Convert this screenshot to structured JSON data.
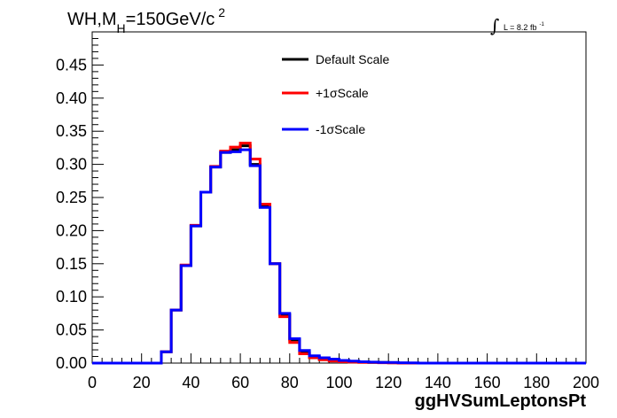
{
  "chart_data": {
    "type": "line",
    "title": {
      "prefix": "WH,M",
      "subscript": "H",
      "suffix": "=150GeV/c",
      "superscript": "2"
    },
    "lumi": {
      "integral_symbol": "∫",
      "text": "L = 8.2 fb",
      "superscript": "-1"
    },
    "xlabel": "ggHVSumLeptonsPt",
    "ylabel": "",
    "xlim": [
      0,
      200
    ],
    "ylim": [
      0,
      0.5
    ],
    "x_ticks": [
      "0",
      "20",
      "40",
      "60",
      "80",
      "100",
      "120",
      "140",
      "160",
      "180",
      "200"
    ],
    "y_ticks": [
      "0.00",
      "0.05",
      "0.10",
      "0.15",
      "0.20",
      "0.25",
      "0.30",
      "0.35",
      "0.40",
      "0.45"
    ],
    "legend_position": "top-center",
    "bin_edges": [
      0,
      4,
      8,
      12,
      16,
      20,
      24,
      28,
      32,
      36,
      40,
      44,
      48,
      52,
      56,
      60,
      64,
      68,
      72,
      76,
      80,
      84,
      88,
      92,
      96,
      100,
      104,
      108,
      112,
      116,
      120,
      124,
      128,
      132,
      136,
      140,
      144,
      148,
      152,
      156,
      160,
      164,
      168,
      172,
      176,
      180,
      184,
      188,
      192,
      196,
      200
    ],
    "series": [
      {
        "name": "Default Scale",
        "color": "#000000",
        "values": [
          0,
          0,
          0,
          0,
          0,
          0,
          0,
          0.017,
          0.08,
          0.147,
          0.207,
          0.258,
          0.296,
          0.318,
          0.322,
          0.328,
          0.3,
          0.237,
          0.15,
          0.073,
          0.035,
          0.016,
          0.009,
          0.006,
          0.004,
          0.003,
          0.002,
          0.0015,
          0.001,
          0.001,
          0.0005,
          0,
          0,
          0,
          0,
          0,
          0,
          0,
          0,
          0,
          0,
          0,
          0,
          0,
          0,
          0,
          0,
          0,
          0,
          0
        ]
      },
      {
        "name": "+1σScale",
        "color": "#ff0000",
        "values": [
          0,
          0,
          0,
          0,
          0,
          0,
          0,
          0.017,
          0.08,
          0.148,
          0.208,
          0.258,
          0.297,
          0.32,
          0.326,
          0.332,
          0.308,
          0.24,
          0.15,
          0.07,
          0.031,
          0.014,
          0.008,
          0.005,
          0.003,
          0.002,
          0.0015,
          0.001,
          0.001,
          0.0005,
          0.0003,
          0,
          0,
          0,
          0,
          0,
          0,
          0,
          0,
          0,
          0,
          0,
          0,
          0,
          0,
          0,
          0,
          0,
          0,
          0
        ]
      },
      {
        "name": "-1σScale",
        "color": "#0000ff",
        "values": [
          0,
          0,
          0,
          0,
          0,
          0,
          0,
          0.017,
          0.08,
          0.147,
          0.207,
          0.258,
          0.296,
          0.318,
          0.319,
          0.322,
          0.298,
          0.235,
          0.15,
          0.075,
          0.037,
          0.019,
          0.011,
          0.008,
          0.006,
          0.004,
          0.003,
          0.002,
          0.0015,
          0.001,
          0.001,
          0.0005,
          0.0003,
          0,
          0,
          0,
          0,
          0,
          0,
          0,
          0,
          0,
          0,
          0,
          0,
          0,
          0,
          0,
          0,
          0
        ]
      }
    ]
  }
}
